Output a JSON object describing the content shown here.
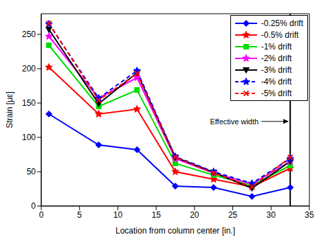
{
  "chart_data": {
    "type": "line",
    "x_label": "Location from column center [in.]",
    "y_label": "Strain [με]",
    "x": [
      1,
      7.5,
      12.5,
      17.5,
      22.5,
      27.5,
      32.5
    ],
    "xlim": [
      0,
      35
    ],
    "xticks": [
      0,
      5,
      10,
      15,
      20,
      25,
      30,
      35
    ],
    "ylim": [
      0,
      280
    ],
    "yticks": [
      0,
      50,
      100,
      150,
      200,
      250
    ],
    "grid": false,
    "legend": "upper right",
    "vertical_line": {
      "x": 32.5,
      "label": "Effective width"
    },
    "series": [
      {
        "name": "-0.25% drift",
        "color": "#0000ff",
        "marker": "diamond",
        "line_style": "solid",
        "values": [
          134,
          89,
          82,
          29,
          27,
          14,
          27
        ]
      },
      {
        "name": "-0.5% drift",
        "color": "#ff0000",
        "marker": "star",
        "line_style": "solid",
        "values": [
          202,
          134,
          141,
          50,
          39,
          28,
          55
        ]
      },
      {
        "name": "-1% drift",
        "color": "#00dd00",
        "marker": "square",
        "line_style": "solid",
        "values": [
          234,
          145,
          169,
          62,
          45,
          30,
          59
        ]
      },
      {
        "name": "-2% drift",
        "color": "#ff00ff",
        "marker": "star",
        "line_style": "solid",
        "values": [
          247,
          157,
          187,
          69,
          48,
          32,
          65
        ]
      },
      {
        "name": "-3% drift",
        "color": "#000000",
        "marker": "triangle-down",
        "line_style": "solid",
        "values": [
          257,
          149,
          194,
          71,
          49,
          26,
          65
        ]
      },
      {
        "name": "-4% drift",
        "color": "#0000ff",
        "marker": "star",
        "line_style": "dashed",
        "values": [
          265,
          157,
          197,
          72,
          50,
          33,
          69
        ]
      },
      {
        "name": "-5% drift",
        "color": "#ff0000",
        "marker": "x",
        "line_style": "dashed",
        "values": [
          266,
          154,
          193,
          71,
          48,
          28,
          71
        ]
      }
    ]
  }
}
